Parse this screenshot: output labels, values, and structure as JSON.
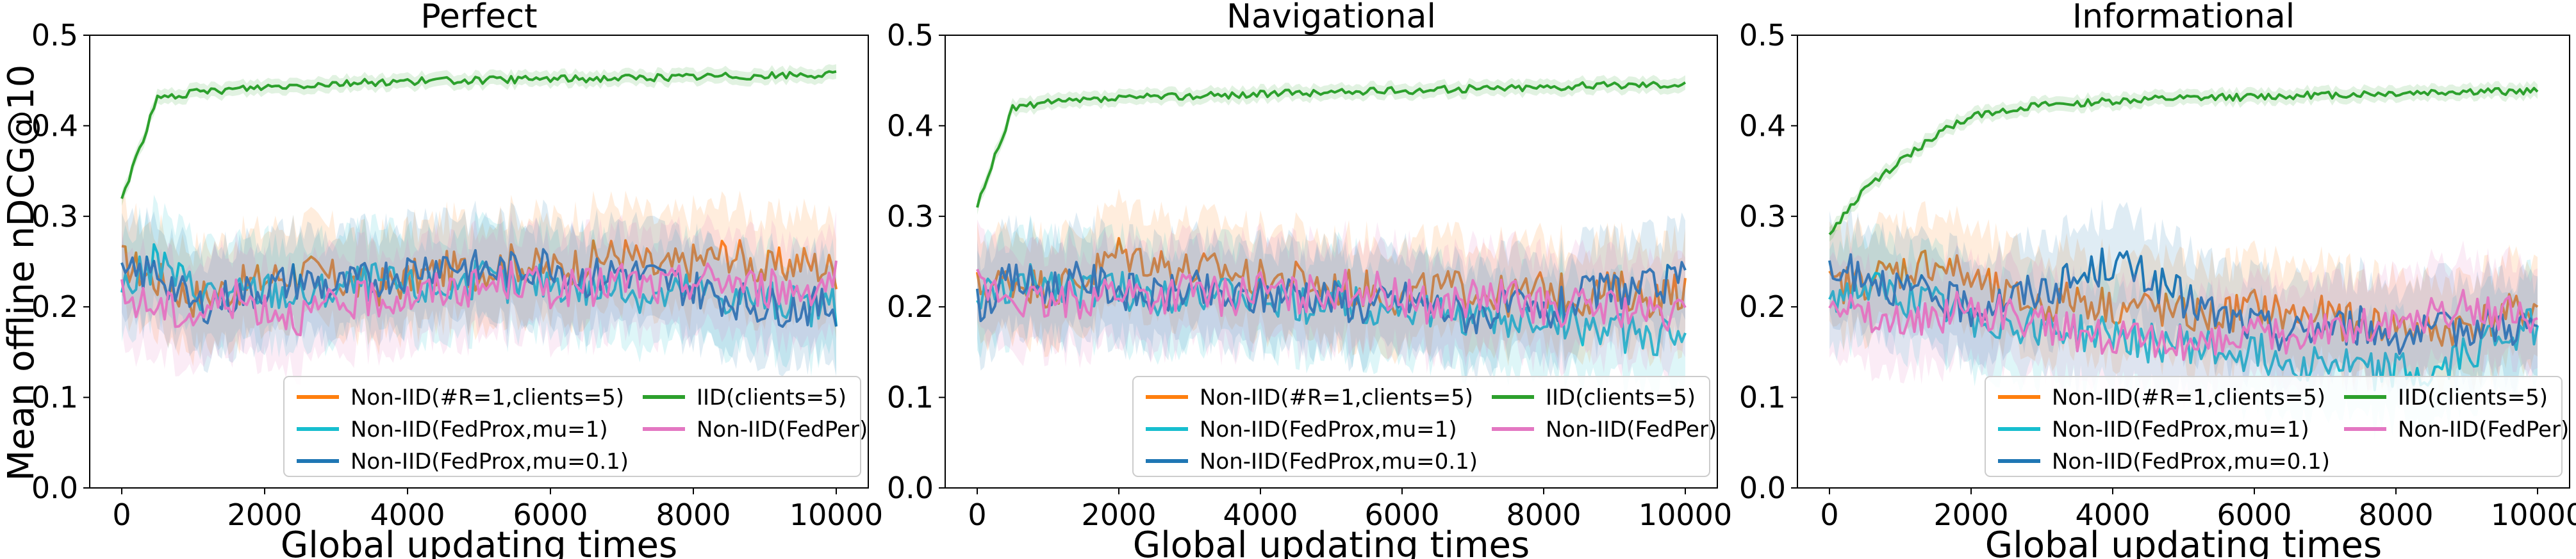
{
  "figure": {
    "ylabel": "Mean offline nDCG@10",
    "xlabel": "Global updating times"
  },
  "colors": {
    "orange": "#ff7f0e",
    "cyan": "#17becf",
    "blue": "#1f77b4",
    "green": "#2ca02c",
    "pink": "#e377c2"
  },
  "chart_data": [
    {
      "type": "line",
      "title": "Perfect",
      "xlabel": "Global updating times",
      "ylabel": "Mean offline nDCG@10",
      "xlim": [
        0,
        10000
      ],
      "ylim": [
        0.0,
        0.5
      ],
      "xticks": [
        "0",
        "2000",
        "4000",
        "6000",
        "8000",
        "10000"
      ],
      "yticks": [
        "0.0",
        "0.1",
        "0.2",
        "0.3",
        "0.4",
        "0.5"
      ],
      "grid": false,
      "legend": "lower-right",
      "x": [
        0,
        500,
        1000,
        1500,
        2000,
        2500,
        3000,
        3500,
        4000,
        4500,
        5000,
        5500,
        6000,
        6500,
        7000,
        7500,
        8000,
        8500,
        9000,
        9500,
        10000
      ],
      "series": [
        {
          "name": "Non-IID(#R=1,clients=5)",
          "color": "orange",
          "values": [
            0.25,
            0.23,
            0.21,
            0.22,
            0.23,
            0.24,
            0.23,
            0.22,
            0.23,
            0.24,
            0.24,
            0.25,
            0.24,
            0.25,
            0.26,
            0.24,
            0.25,
            0.26,
            0.24,
            0.25,
            0.24
          ]
        },
        {
          "name": "Non-IID(FedProx,mu=1)",
          "color": "cyan",
          "values": [
            0.22,
            0.25,
            0.22,
            0.21,
            0.22,
            0.21,
            0.22,
            0.23,
            0.22,
            0.22,
            0.23,
            0.22,
            0.23,
            0.22,
            0.22,
            0.21,
            0.22,
            0.21,
            0.21,
            0.2,
            0.2
          ]
        },
        {
          "name": "Non-IID(FedProx,mu=0.1)",
          "color": "blue",
          "values": [
            0.23,
            0.24,
            0.2,
            0.21,
            0.22,
            0.23,
            0.22,
            0.23,
            0.24,
            0.25,
            0.24,
            0.24,
            0.25,
            0.23,
            0.24,
            0.23,
            0.22,
            0.21,
            0.2,
            0.2,
            0.2
          ]
        },
        {
          "name": "IID(clients=5)",
          "color": "green",
          "values": [
            0.32,
            0.43,
            0.436,
            0.44,
            0.443,
            0.445,
            0.447,
            0.448,
            0.449,
            0.45,
            0.45,
            0.451,
            0.452,
            0.452,
            0.453,
            0.453,
            0.454,
            0.455,
            0.455,
            0.456,
            0.456
          ]
        },
        {
          "name": "Non-IID(FedPer)",
          "color": "pink",
          "values": [
            0.21,
            0.2,
            0.19,
            0.21,
            0.2,
            0.19,
            0.2,
            0.21,
            0.21,
            0.22,
            0.22,
            0.23,
            0.22,
            0.22,
            0.23,
            0.22,
            0.23,
            0.23,
            0.22,
            0.22,
            0.23
          ]
        }
      ]
    },
    {
      "type": "line",
      "title": "Navigational",
      "xlabel": "Global updating times",
      "ylabel": "",
      "xlim": [
        0,
        10000
      ],
      "ylim": [
        0.0,
        0.5
      ],
      "xticks": [
        "0",
        "2000",
        "4000",
        "6000",
        "8000",
        "10000"
      ],
      "yticks": [
        "0.0",
        "0.1",
        "0.2",
        "0.3",
        "0.4",
        "0.5"
      ],
      "grid": false,
      "legend": "lower-right",
      "x": [
        0,
        500,
        1000,
        1500,
        2000,
        2500,
        3000,
        3500,
        4000,
        4500,
        5000,
        5500,
        6000,
        6500,
        7000,
        7500,
        8000,
        8500,
        9000,
        9500,
        10000
      ],
      "series": [
        {
          "name": "Non-IID(#R=1,clients=5)",
          "color": "orange",
          "values": [
            0.22,
            0.23,
            0.22,
            0.23,
            0.26,
            0.25,
            0.24,
            0.24,
            0.23,
            0.23,
            0.22,
            0.22,
            0.21,
            0.22,
            0.22,
            0.21,
            0.22,
            0.21,
            0.22,
            0.21,
            0.22
          ]
        },
        {
          "name": "Non-IID(FedProx,mu=1)",
          "color": "cyan",
          "values": [
            0.21,
            0.22,
            0.23,
            0.22,
            0.22,
            0.21,
            0.22,
            0.21,
            0.21,
            0.2,
            0.21,
            0.2,
            0.2,
            0.19,
            0.19,
            0.18,
            0.19,
            0.18,
            0.17,
            0.17,
            0.16
          ]
        },
        {
          "name": "Non-IID(FedProx,mu=0.1)",
          "color": "blue",
          "values": [
            0.2,
            0.23,
            0.22,
            0.23,
            0.22,
            0.21,
            0.22,
            0.21,
            0.21,
            0.22,
            0.21,
            0.2,
            0.21,
            0.2,
            0.19,
            0.2,
            0.19,
            0.21,
            0.22,
            0.22,
            0.23
          ]
        },
        {
          "name": "IID(clients=5)",
          "color": "green",
          "values": [
            0.31,
            0.42,
            0.425,
            0.428,
            0.43,
            0.432,
            0.433,
            0.434,
            0.435,
            0.436,
            0.437,
            0.438,
            0.439,
            0.44,
            0.441,
            0.442,
            0.443,
            0.444,
            0.445,
            0.446,
            0.446
          ]
        },
        {
          "name": "Non-IID(FedPer)",
          "color": "pink",
          "values": [
            0.22,
            0.21,
            0.2,
            0.21,
            0.22,
            0.21,
            0.22,
            0.21,
            0.22,
            0.21,
            0.22,
            0.22,
            0.21,
            0.2,
            0.21,
            0.21,
            0.2,
            0.2,
            0.2,
            0.19,
            0.19
          ]
        }
      ]
    },
    {
      "type": "line",
      "title": "Informational",
      "xlabel": "Global updating times",
      "ylabel": "",
      "xlim": [
        0,
        10000
      ],
      "ylim": [
        0.0,
        0.5
      ],
      "xticks": [
        "0",
        "2000",
        "4000",
        "6000",
        "8000",
        "10000"
      ],
      "yticks": [
        "0.0",
        "0.1",
        "0.2",
        "0.3",
        "0.4",
        "0.5"
      ],
      "grid": false,
      "legend": "lower-right",
      "x": [
        0,
        500,
        1000,
        1500,
        2000,
        2500,
        3000,
        3500,
        4000,
        4500,
        5000,
        5500,
        6000,
        6500,
        7000,
        7500,
        8000,
        8500,
        9000,
        9500,
        10000
      ],
      "series": [
        {
          "name": "Non-IID(#R=1,clients=5)",
          "color": "orange",
          "values": [
            0.22,
            0.23,
            0.24,
            0.25,
            0.23,
            0.21,
            0.2,
            0.21,
            0.2,
            0.2,
            0.19,
            0.19,
            0.2,
            0.19,
            0.19,
            0.18,
            0.18,
            0.17,
            0.18,
            0.19,
            0.2
          ]
        },
        {
          "name": "Non-IID(FedProx,mu=1)",
          "color": "cyan",
          "values": [
            0.21,
            0.22,
            0.21,
            0.2,
            0.19,
            0.18,
            0.18,
            0.17,
            0.17,
            0.16,
            0.16,
            0.15,
            0.15,
            0.14,
            0.14,
            0.13,
            0.13,
            0.12,
            0.15,
            0.17,
            0.18
          ]
        },
        {
          "name": "Non-IID(FedProx,mu=0.1)",
          "color": "blue",
          "values": [
            0.23,
            0.24,
            0.22,
            0.21,
            0.2,
            0.21,
            0.22,
            0.23,
            0.25,
            0.23,
            0.21,
            0.19,
            0.18,
            0.17,
            0.18,
            0.18,
            0.17,
            0.17,
            0.18,
            0.18,
            0.18
          ]
        },
        {
          "name": "IID(clients=5)",
          "color": "green",
          "values": [
            0.28,
            0.33,
            0.36,
            0.39,
            0.41,
            0.418,
            0.422,
            0.425,
            0.427,
            0.429,
            0.43,
            0.431,
            0.432,
            0.433,
            0.434,
            0.435,
            0.436,
            0.437,
            0.438,
            0.438,
            0.438
          ]
        },
        {
          "name": "Non-IID(FedPer)",
          "color": "pink",
          "values": [
            0.22,
            0.19,
            0.18,
            0.19,
            0.2,
            0.19,
            0.18,
            0.17,
            0.17,
            0.16,
            0.16,
            0.16,
            0.17,
            0.17,
            0.17,
            0.18,
            0.18,
            0.19,
            0.2,
            0.19,
            0.19
          ]
        }
      ]
    }
  ]
}
